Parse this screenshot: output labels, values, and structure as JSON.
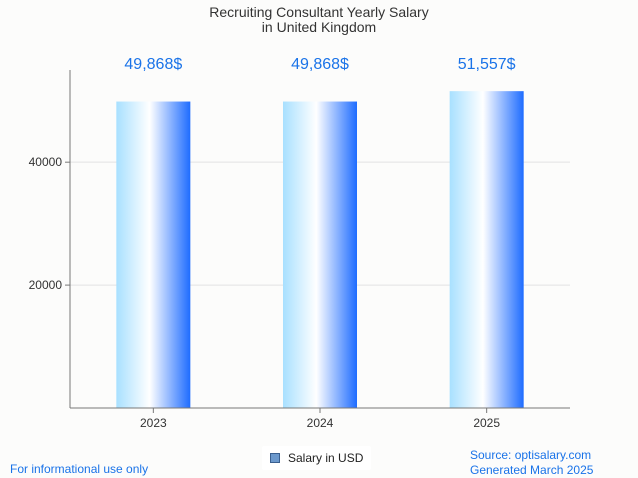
{
  "chart_data": {
    "type": "bar",
    "title": "Recruiting Consultant Yearly Salary",
    "subtitle": "in United Kingdom",
    "categories": [
      "2023",
      "2024",
      "2025"
    ],
    "series": [
      {
        "name": "Salary in USD",
        "values": [
          49868,
          49868,
          51557
        ],
        "labels": [
          "49,868$",
          "49,868$",
          "51,557$"
        ]
      }
    ],
    "yticks": [
      "20000",
      "40000"
    ],
    "ytick_values": [
      20000,
      40000
    ],
    "ylim": [
      0,
      55000
    ],
    "grid": true,
    "legend_position": "bottom"
  },
  "footer": {
    "disclaimer": "For informational use only",
    "source": "Source: optisalary.com",
    "generated": "Generated March 2025"
  },
  "colors": {
    "accent": "#1a73e8",
    "bar_light": "#a8e0ff",
    "bar_mid": "#ffffff",
    "bar_dark": "#1e6cff",
    "legend_swatch": "#6b98cc"
  }
}
